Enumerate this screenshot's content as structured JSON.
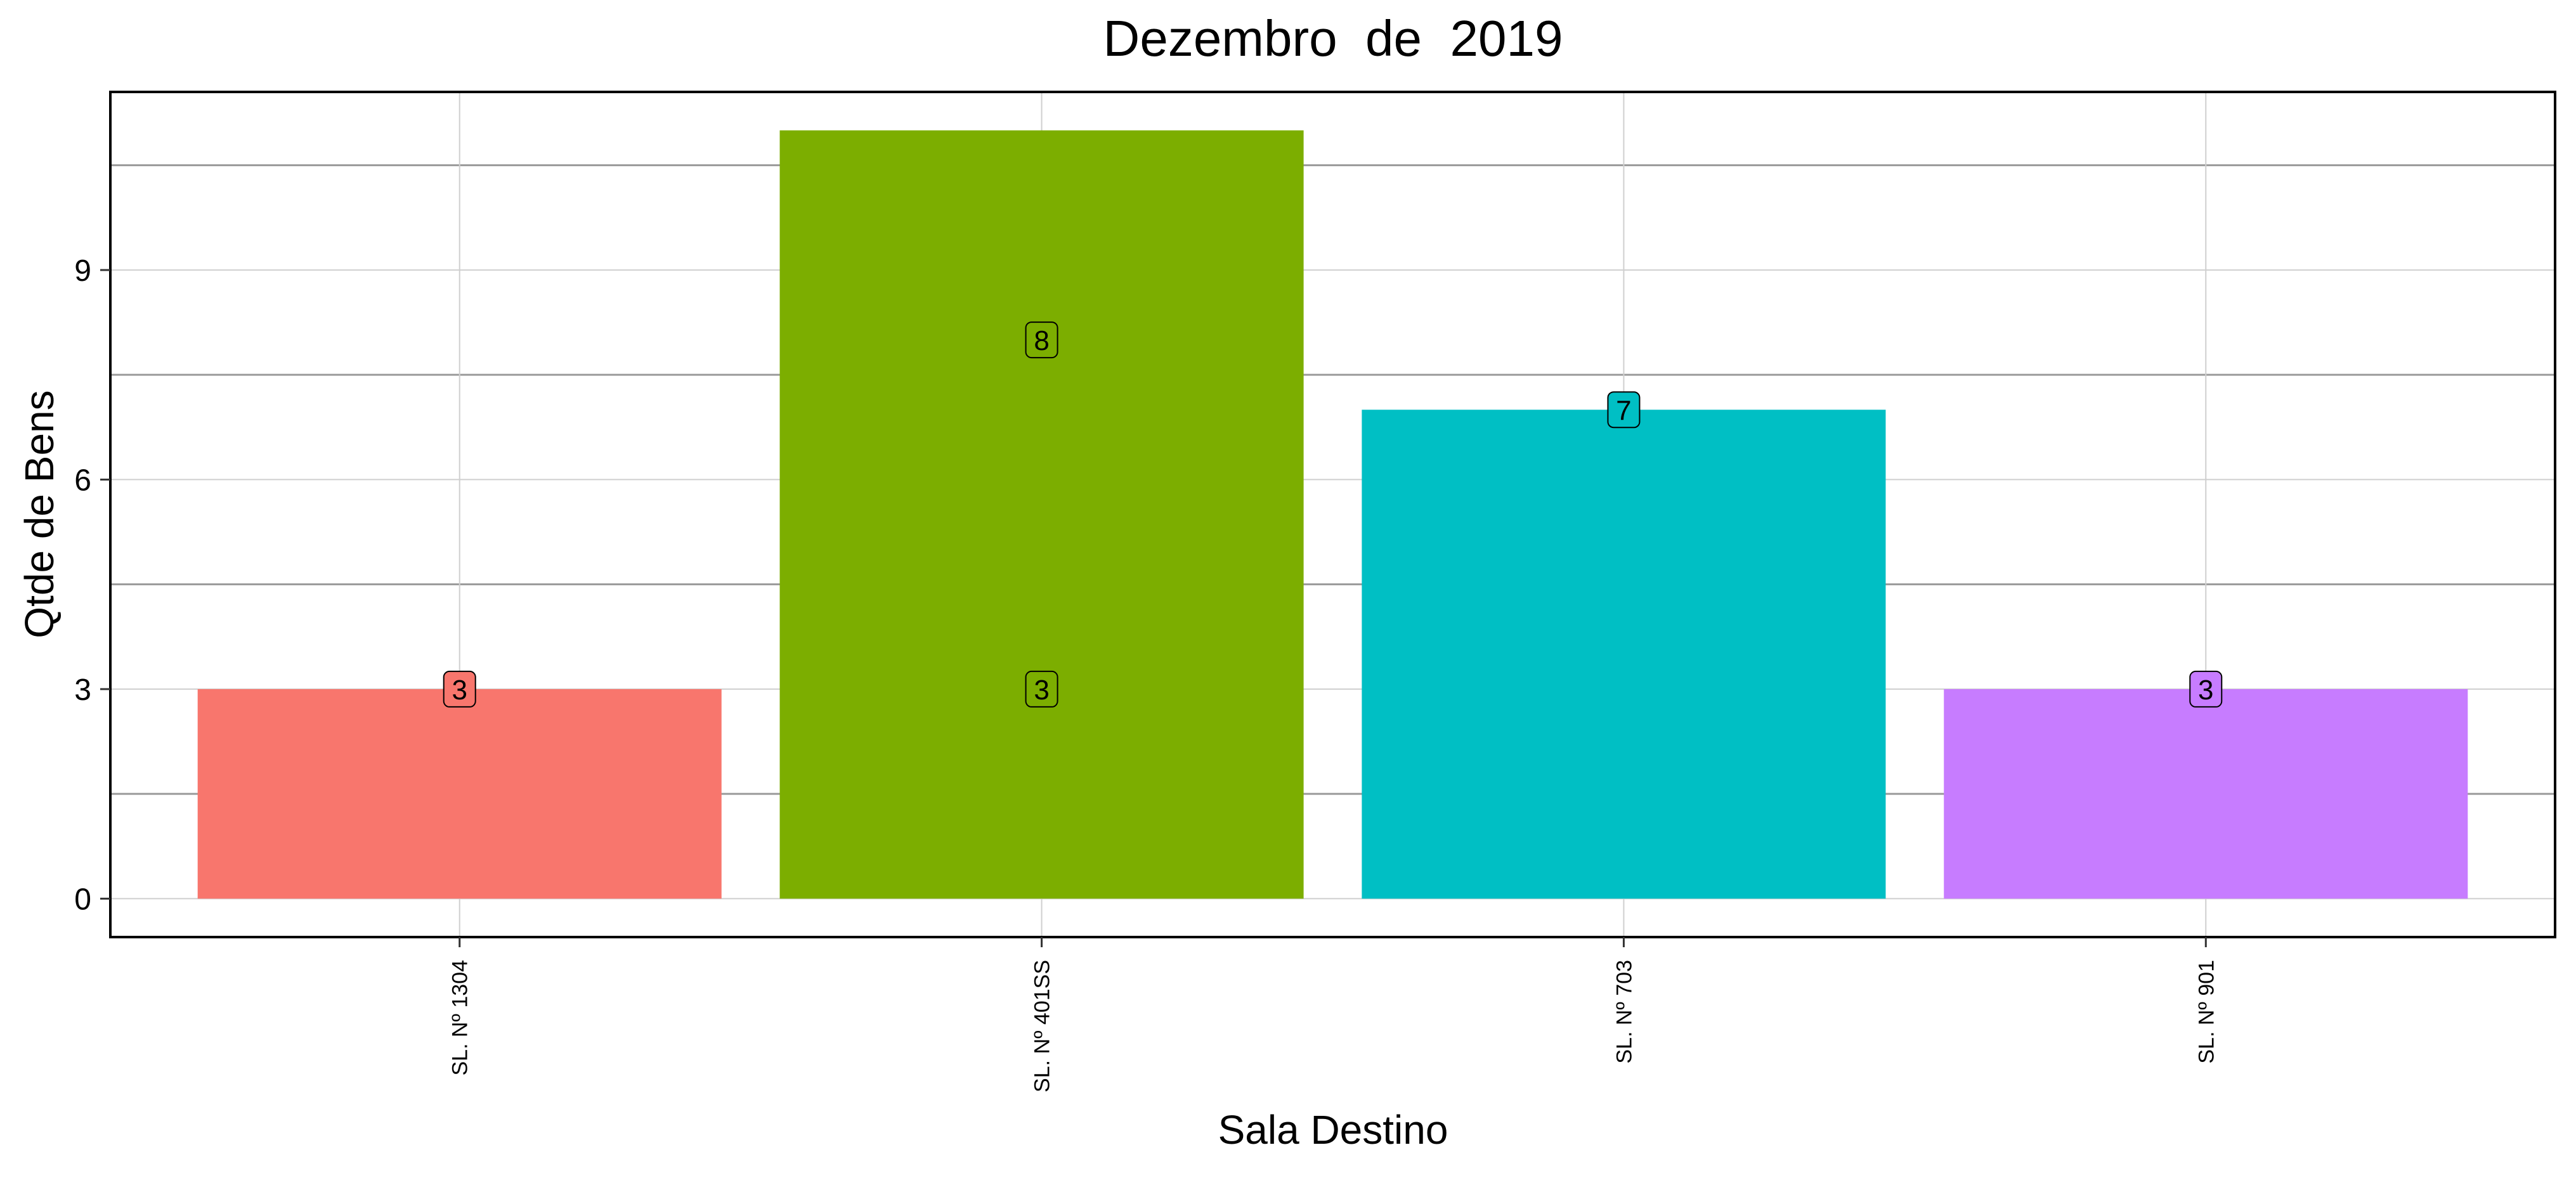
{
  "chart_data": {
    "type": "bar",
    "title": "Dezembro  de  2019",
    "xlabel": "Sala Destino",
    "ylabel": "Qtde de Bens",
    "categories": [
      "SL. Nº 1304",
      "SL. Nº 401SS",
      "SL. Nº 703",
      "SL. Nº 901"
    ],
    "values": [
      3,
      11,
      7,
      3
    ],
    "colors": [
      "#F8766D",
      "#7CAE00",
      "#00BFC4",
      "#C77CFF"
    ],
    "data_labels": [
      {
        "category_index": 0,
        "y": 3,
        "text": "3"
      },
      {
        "category_index": 1,
        "y": 8,
        "text": "8"
      },
      {
        "category_index": 1,
        "y": 3,
        "text": "3"
      },
      {
        "category_index": 2,
        "y": 7,
        "text": "7"
      },
      {
        "category_index": 3,
        "y": 3,
        "text": "3"
      }
    ],
    "y_ticks": [
      0,
      3,
      6,
      9
    ],
    "y_minor_gridlines": [
      1.5,
      4.5,
      7.5,
      10.5
    ],
    "ylim": [
      -0.55,
      11.55
    ],
    "grid": true,
    "legend": "none"
  }
}
